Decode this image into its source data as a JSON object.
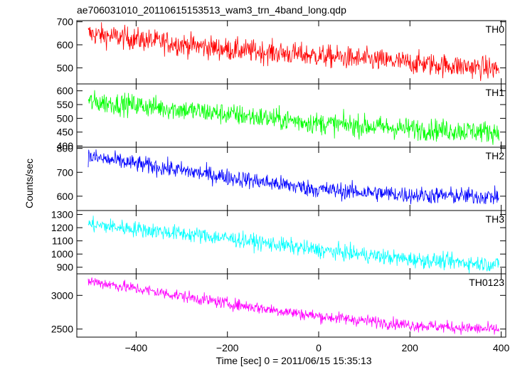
{
  "chart_data": {
    "type": "line",
    "title": "ae706031010_20110615153513_wam3_trn_4band_long.qdp",
    "xlabel": "Time [sec] 0 = 2011/06/15 15:35:13",
    "ylabel": "Counts/sec",
    "xlim": [
      -530,
      410
    ],
    "xticks": [
      -400,
      -200,
      0,
      200,
      400
    ],
    "x_range": [
      -505,
      395
    ],
    "n_points": 900,
    "panels": [
      {
        "name": "TH0",
        "color": "#ff0000",
        "ylim": [
          430,
          705
        ],
        "yticks": [
          500,
          600,
          700
        ],
        "trend": [
          [
            -505,
            648
          ],
          [
            -400,
            625
          ],
          [
            -200,
            580
          ],
          [
            0,
            552
          ],
          [
            200,
            522
          ],
          [
            395,
            495
          ]
        ],
        "noise": 25
      },
      {
        "name": "TH1",
        "color": "#00ff00",
        "ylim": [
          395,
          625
        ],
        "yticks": [
          400,
          450,
          500,
          550,
          600
        ],
        "trend": [
          [
            -505,
            560
          ],
          [
            -400,
            548
          ],
          [
            -200,
            515
          ],
          [
            0,
            482
          ],
          [
            200,
            462
          ],
          [
            395,
            450
          ]
        ],
        "noise": 20
      },
      {
        "name": "TH2",
        "color": "#0000ff",
        "ylim": [
          540,
          805
        ],
        "yticks": [
          600,
          700,
          800
        ],
        "trend": [
          [
            -505,
            765
          ],
          [
            -400,
            735
          ],
          [
            -200,
            680
          ],
          [
            0,
            628
          ],
          [
            200,
            605
          ],
          [
            395,
            598
          ]
        ],
        "noise": 18
      },
      {
        "name": "TH3",
        "color": "#00ffff",
        "ylim": [
          850,
          1330
        ],
        "yticks": [
          900,
          1000,
          1100,
          1200,
          1300
        ],
        "trend": [
          [
            -505,
            1225
          ],
          [
            -400,
            1190
          ],
          [
            -200,
            1120
          ],
          [
            0,
            1030
          ],
          [
            200,
            960
          ],
          [
            395,
            920
          ]
        ],
        "noise": 30
      },
      {
        "name": "TH0123",
        "color": "#ff00ff",
        "ylim": [
          2380,
          3320
        ],
        "yticks": [
          2500,
          3000
        ],
        "trend": [
          [
            -505,
            3215
          ],
          [
            -400,
            3100
          ],
          [
            -200,
            2880
          ],
          [
            0,
            2690
          ],
          [
            200,
            2560
          ],
          [
            395,
            2490
          ]
        ],
        "noise": 45
      }
    ]
  }
}
